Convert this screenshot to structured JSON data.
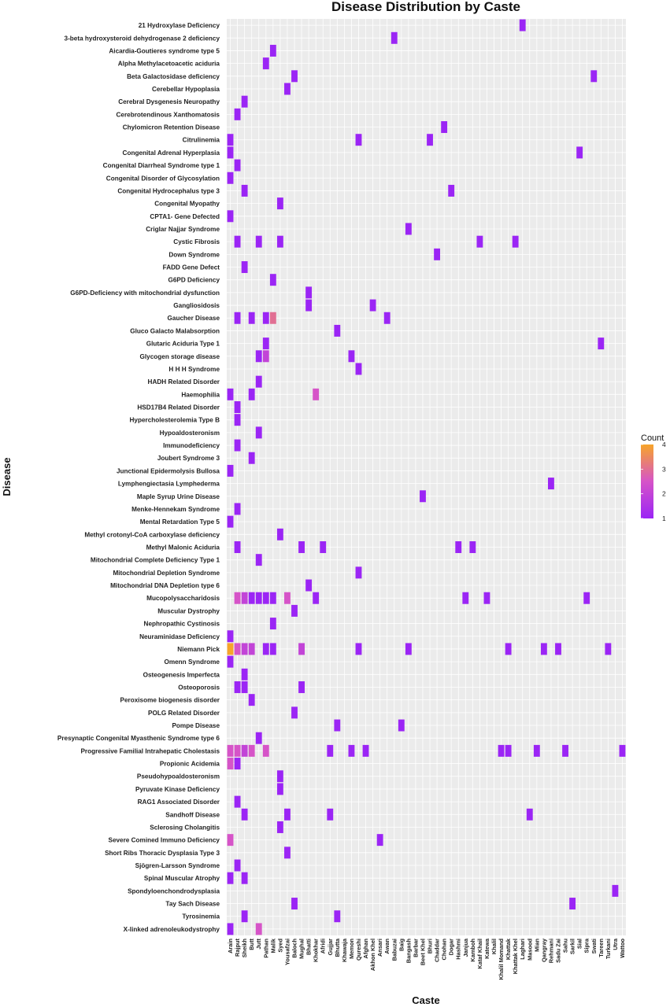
{
  "chart_data": {
    "type": "heatmap",
    "title": "Disease Distribution by Caste",
    "xlabel": "Caste",
    "ylabel": "Disease",
    "legend": {
      "title": "Count",
      "ticks": [
        1,
        2,
        3,
        4
      ],
      "position": "right",
      "low_color": "#9b25f5",
      "mid_color": "#d654c8",
      "high_color": "#f7a52a"
    },
    "grid": true,
    "diseases": [
      "21 Hydroxylase Deficiency",
      "3-beta hydroxysteroid dehydrogenase 2 deficiency",
      "Aicardia-Goutieres syndrome type 5",
      "Alpha Methylacetoacetic aciduria",
      "Beta Galactosidase deficiency",
      "Cerebellar Hypoplasia",
      "Cerebral Dysgenesis Neuropathy",
      "Cerebrotendinous Xanthomatosis",
      "Chylomicron Retention Disease",
      "Citrulinemia",
      "Congenital Adrenal Hyperplasia",
      "Congenital Diarrheal Syndrome type 1",
      "Congenital Disorder of Glycosylation",
      "Congenital Hydrocephalus type 3",
      "Congenital Myopathy",
      "CPTA1- Gene Defected",
      "Criglar Najjar Syndrome",
      "Cystic Fibrosis",
      "Down Syndrome",
      "FADD Gene Defect",
      "G6PD Deficiency",
      "G6PD-Deficiency with mitochondrial dysfunction",
      "Gangliosidosis",
      "Gaucher Disease",
      "Gluco Galacto Malabsorption",
      "Glutaric Aciduria Type 1",
      "Glycogen storage disease",
      "H H H Syndrome",
      "HADH Related Disorder",
      "Haemophilia",
      "HSD17B4 Related Disorder",
      "Hypercholesterolemia Type B",
      "Hypoaldosteronism",
      "Immunodeficiency",
      "Joubert Syndrome 3",
      "Junctional Epidermolysis Bullosa",
      "Lymphengiectasia Lymphederma",
      "Maple Syrup Urine Disease",
      "Menke-Hennekam Syndrome",
      "Mental Retardation Type 5",
      "Methyl crotonyl-CoA carboxylase deficiency",
      "Methyl Malonic Aciduria",
      "Mitochondrial Complete Deficiency Type 1",
      "Mitochondrial Depletion Syndrome",
      "Mitochondrial DNA Depletion type 6",
      "Mucopolysaccharidosis",
      "Muscular Dystrophy",
      "Nephropathic Cystinosis",
      "Neuraminidase Deficiency",
      "Niemann Pick",
      "Omenn Syndrome",
      "Osteogenesis Imperfecta",
      "Osteoporosis",
      "Peroxisome biogenesis disorder",
      "POLG Related Disorder",
      "Pompe Disease",
      "Presynaptic Congenital Myasthenic Syndrome type 6",
      "Progressive Familial Intrahepatic Cholestasis",
      "Propionic Acidemia",
      "Pseudohypoaldosteronism",
      "Pyruvate Kinase Deficiency",
      "RAG1 Associated Disorder",
      "Sandhoff Disease",
      "Sclerosing Cholangitis",
      "Severe Comined Immuno Deficiency",
      "Short Ribs Thoracic Dysplasia Type 3",
      "Sjögren-Larsson Syndrome",
      "Spinal Muscular Atrophy",
      "Spondyloenchondrodysplasia",
      "Tay Sach Disease",
      "Tyrosinemia",
      "X-linked adrenoleukodystrophy"
    ],
    "castes": [
      "Arain",
      "Rajput",
      "Sheikh",
      "Butt",
      "Jutt",
      "Pathan",
      "Malik",
      "Syed",
      "Yousafzai",
      "Baloch",
      "Mughal",
      "Bhatti",
      "Khokhar",
      "Afridi",
      "Gujjar",
      "Bhutta",
      "Khawaja",
      "Memon",
      "Qureshi",
      "Afghan",
      "Akhon Khel",
      "Ansari",
      "Awan",
      "Babuzai",
      "Baig",
      "Bangash",
      "Barbar",
      "Beet Khel",
      "Bhuri",
      "Chaddar",
      "Chohan",
      "Dogar",
      "Hashmi",
      "Janjua",
      "Kamboh",
      "Kataf Khail",
      "Katewa",
      "Khalil",
      "Khalil Momand",
      "Khattak",
      "Khattak Khel",
      "Laghari",
      "Masood",
      "Mian",
      "Qangray",
      "Rehmani",
      "Sadu Zai",
      "Sahu",
      "Sarkil",
      "Sial",
      "Sipra",
      "Swati",
      "Tareen",
      "Turkani",
      "Utra",
      "Wattoo"
    ],
    "cells": [
      [
        "21 Hydroxylase Deficiency",
        "Laghari",
        1
      ],
      [
        "3-beta hydroxysteroid dehydrogenase 2 deficiency",
        "Babuzai",
        1
      ],
      [
        "Aicardia-Goutieres syndrome type 5",
        "Malik",
        1
      ],
      [
        "Alpha Methylacetoacetic aciduria",
        "Pathan",
        1
      ],
      [
        "Beta Galactosidase deficiency",
        "Baloch",
        1
      ],
      [
        "Beta Galactosidase deficiency",
        "Swati",
        1
      ],
      [
        "Cerebellar Hypoplasia",
        "Yousafzai",
        1
      ],
      [
        "Cerebral Dysgenesis Neuropathy",
        "Sheikh",
        1
      ],
      [
        "Cerebrotendinous Xanthomatosis",
        "Rajput",
        1
      ],
      [
        "Chylomicron Retention Disease",
        "Chohan",
        1
      ],
      [
        "Citrulinemia",
        "Arain",
        1
      ],
      [
        "Citrulinemia",
        "Qureshi",
        1
      ],
      [
        "Citrulinemia",
        "Bhuri",
        1
      ],
      [
        "Congenital Adrenal Hyperplasia",
        "Arain",
        1
      ],
      [
        "Congenital Adrenal Hyperplasia",
        "Sial",
        1
      ],
      [
        "Congenital Diarrheal Syndrome type 1",
        "Rajput",
        1
      ],
      [
        "Congenital Disorder of Glycosylation",
        "Arain",
        1
      ],
      [
        "Congenital Hydrocephalus type 3",
        "Sheikh",
        1
      ],
      [
        "Congenital Hydrocephalus type 3",
        "Dogar",
        1
      ],
      [
        "Congenital Myopathy",
        "Syed",
        1
      ],
      [
        "CPTA1- Gene Defected",
        "Arain",
        1
      ],
      [
        "Criglar Najjar Syndrome",
        "Bangash",
        1
      ],
      [
        "Cystic Fibrosis",
        "Rajput",
        1
      ],
      [
        "Cystic Fibrosis",
        "Jutt",
        1
      ],
      [
        "Cystic Fibrosis",
        "Syed",
        1
      ],
      [
        "Cystic Fibrosis",
        "Kataf Khail",
        1
      ],
      [
        "Cystic Fibrosis",
        "Khattak Khel",
        1
      ],
      [
        "Down Syndrome",
        "Chaddar",
        1
      ],
      [
        "FADD Gene Defect",
        "Sheikh",
        1
      ],
      [
        "G6PD Deficiency",
        "Malik",
        1
      ],
      [
        "G6PD-Deficiency with mitochondrial dysfunction",
        "Bhatti",
        1
      ],
      [
        "Gangliosidosis",
        "Bhatti",
        1
      ],
      [
        "Gangliosidosis",
        "Akhon Khel",
        1
      ],
      [
        "Gaucher Disease",
        "Rajput",
        1
      ],
      [
        "Gaucher Disease",
        "Butt",
        1
      ],
      [
        "Gaucher Disease",
        "Pathan",
        1
      ],
      [
        "Gaucher Disease",
        "Malik",
        3
      ],
      [
        "Gaucher Disease",
        "Awan",
        1
      ],
      [
        "Gluco Galacto Malabsorption",
        "Bhutta",
        1
      ],
      [
        "Glutaric Aciduria Type 1",
        "Pathan",
        1
      ],
      [
        "Glutaric Aciduria Type 1",
        "Tareen",
        1
      ],
      [
        "Glycogen storage disease",
        "Jutt",
        1
      ],
      [
        "Glycogen storage disease",
        "Pathan",
        2
      ],
      [
        "Glycogen storage disease",
        "Memon",
        1
      ],
      [
        "H H H Syndrome",
        "Qureshi",
        1
      ],
      [
        "HADH Related Disorder",
        "Jutt",
        1
      ],
      [
        "Haemophilia",
        "Arain",
        1
      ],
      [
        "Haemophilia",
        "Butt",
        1
      ],
      [
        "Haemophilia",
        "Khokhar",
        2.5
      ],
      [
        "HSD17B4 Related Disorder",
        "Rajput",
        1
      ],
      [
        "Hypercholesterolemia Type B",
        "Rajput",
        1
      ],
      [
        "Hypoaldosteronism",
        "Jutt",
        1
      ],
      [
        "Immunodeficiency",
        "Rajput",
        1
      ],
      [
        "Joubert Syndrome 3",
        "Butt",
        1
      ],
      [
        "Junctional Epidermolysis Bullosa",
        "Arain",
        1
      ],
      [
        "Lymphengiectasia Lymphederma",
        "Rehmani",
        1
      ],
      [
        "Maple Syrup Urine Disease",
        "Beet Khel",
        1
      ],
      [
        "Menke-Hennekam Syndrome",
        "Rajput",
        1
      ],
      [
        "Mental Retardation Type 5",
        "Arain",
        1
      ],
      [
        "Methyl crotonyl-CoA carboxylase deficiency",
        "Syed",
        1
      ],
      [
        "Methyl Malonic Aciduria",
        "Rajput",
        1
      ],
      [
        "Methyl Malonic Aciduria",
        "Mughal",
        1
      ],
      [
        "Methyl Malonic Aciduria",
        "Afridi",
        1
      ],
      [
        "Methyl Malonic Aciduria",
        "Hashmi",
        1
      ],
      [
        "Methyl Malonic Aciduria",
        "Kamboh",
        1
      ],
      [
        "Mitochondrial Complete Deficiency Type 1",
        "Jutt",
        1
      ],
      [
        "Mitochondrial Depletion Syndrome",
        "Qureshi",
        1
      ],
      [
        "Mitochondrial DNA Depletion type 6",
        "Bhatti",
        1
      ],
      [
        "Mucopolysaccharidosis",
        "Rajput",
        2.5
      ],
      [
        "Mucopolysaccharidosis",
        "Sheikh",
        2
      ],
      [
        "Mucopolysaccharidosis",
        "Butt",
        1
      ],
      [
        "Mucopolysaccharidosis",
        "Jutt",
        1
      ],
      [
        "Mucopolysaccharidosis",
        "Pathan",
        1
      ],
      [
        "Mucopolysaccharidosis",
        "Malik",
        1
      ],
      [
        "Mucopolysaccharidosis",
        "Yousafzai",
        2.5
      ],
      [
        "Mucopolysaccharidosis",
        "Khokhar",
        1
      ],
      [
        "Mucopolysaccharidosis",
        "Janjua",
        1
      ],
      [
        "Mucopolysaccharidosis",
        "Katewa",
        1
      ],
      [
        "Mucopolysaccharidosis",
        "Sipra",
        1
      ],
      [
        "Muscular Dystrophy",
        "Baloch",
        1
      ],
      [
        "Nephropathic Cystinosis",
        "Malik",
        1
      ],
      [
        "Neuraminidase Deficiency",
        "Arain",
        1
      ],
      [
        "Niemann Pick",
        "Arain",
        4
      ],
      [
        "Niemann Pick",
        "Rajput",
        2.5
      ],
      [
        "Niemann Pick",
        "Sheikh",
        2
      ],
      [
        "Niemann Pick",
        "Butt",
        2
      ],
      [
        "Niemann Pick",
        "Pathan",
        1
      ],
      [
        "Niemann Pick",
        "Malik",
        1
      ],
      [
        "Niemann Pick",
        "Mughal",
        2
      ],
      [
        "Niemann Pick",
        "Qureshi",
        1
      ],
      [
        "Niemann Pick",
        "Bangash",
        1
      ],
      [
        "Niemann Pick",
        "Khattak",
        1
      ],
      [
        "Niemann Pick",
        "Qangray",
        1
      ],
      [
        "Niemann Pick",
        "Sadu Zai",
        1
      ],
      [
        "Niemann Pick",
        "Turkani",
        1
      ],
      [
        "Omenn Syndrome",
        "Arain",
        1
      ],
      [
        "Osteogenesis Imperfecta",
        "Sheikh",
        1
      ],
      [
        "Osteoporosis",
        "Rajput",
        1
      ],
      [
        "Osteoporosis",
        "Sheikh",
        1
      ],
      [
        "Osteoporosis",
        "Mughal",
        1
      ],
      [
        "Peroxisome biogenesis disorder",
        "Butt",
        1
      ],
      [
        "POLG Related Disorder",
        "Baloch",
        1
      ],
      [
        "Pompe Disease",
        "Bhutta",
        1
      ],
      [
        "Pompe Disease",
        "Baig",
        1
      ],
      [
        "Presynaptic Congenital Myasthenic Syndrome type 6",
        "Jutt",
        1
      ],
      [
        "Progressive Familial Intrahepatic Cholestasis",
        "Arain",
        2.5
      ],
      [
        "Progressive Familial Intrahepatic Cholestasis",
        "Rajput",
        2.5
      ],
      [
        "Progressive Familial Intrahepatic Cholestasis",
        "Sheikh",
        2
      ],
      [
        "Progressive Familial Intrahepatic Cholestasis",
        "Butt",
        2.5
      ],
      [
        "Progressive Familial Intrahepatic Cholestasis",
        "Pathan",
        2.5
      ],
      [
        "Progressive Familial Intrahepatic Cholestasis",
        "Gujjar",
        1
      ],
      [
        "Progressive Familial Intrahepatic Cholestasis",
        "Memon",
        1
      ],
      [
        "Progressive Familial Intrahepatic Cholestasis",
        "Afghan",
        1
      ],
      [
        "Progressive Familial Intrahepatic Cholestasis",
        "Khalil Momand",
        1
      ],
      [
        "Progressive Familial Intrahepatic Cholestasis",
        "Khattak",
        1
      ],
      [
        "Progressive Familial Intrahepatic Cholestasis",
        "Mian",
        1
      ],
      [
        "Progressive Familial Intrahepatic Cholestasis",
        "Sahu",
        1
      ],
      [
        "Progressive Familial Intrahepatic Cholestasis",
        "Wattoo",
        1
      ],
      [
        "Propionic Acidemia",
        "Arain",
        2.5
      ],
      [
        "Propionic Acidemia",
        "Rajput",
        1
      ],
      [
        "Pseudohypoaldosteronism",
        "Syed",
        1
      ],
      [
        "Pyruvate Kinase Deficiency",
        "Syed",
        1
      ],
      [
        "RAG1 Associated Disorder",
        "Rajput",
        1
      ],
      [
        "Sandhoff Disease",
        "Sheikh",
        1
      ],
      [
        "Sandhoff Disease",
        "Yousafzai",
        1
      ],
      [
        "Sandhoff Disease",
        "Gujjar",
        1
      ],
      [
        "Sandhoff Disease",
        "Masood",
        1
      ],
      [
        "Sclerosing Cholangitis",
        "Syed",
        1
      ],
      [
        "Severe Comined Immuno Deficiency",
        "Arain",
        2.5
      ],
      [
        "Severe Comined Immuno Deficiency",
        "Ansari",
        1
      ],
      [
        "Short Ribs Thoracic Dysplasia Type 3",
        "Yousafzai",
        1
      ],
      [
        "Sjögren-Larsson Syndrome",
        "Rajput",
        1
      ],
      [
        "Spinal Muscular Atrophy",
        "Arain",
        1
      ],
      [
        "Spinal Muscular Atrophy",
        "Sheikh",
        1
      ],
      [
        "Spondyloenchondrodysplasia",
        "Utra",
        1
      ],
      [
        "Tay Sach Disease",
        "Baloch",
        1
      ],
      [
        "Tay Sach Disease",
        "Sarkil",
        1
      ],
      [
        "Tyrosinemia",
        "Sheikh",
        1
      ],
      [
        "Tyrosinemia",
        "Bhutta",
        1
      ],
      [
        "X-linked adrenoleukodystrophy",
        "Arain",
        1
      ],
      [
        "X-linked adrenoleukodystrophy",
        "Jutt",
        2.5
      ]
    ]
  }
}
